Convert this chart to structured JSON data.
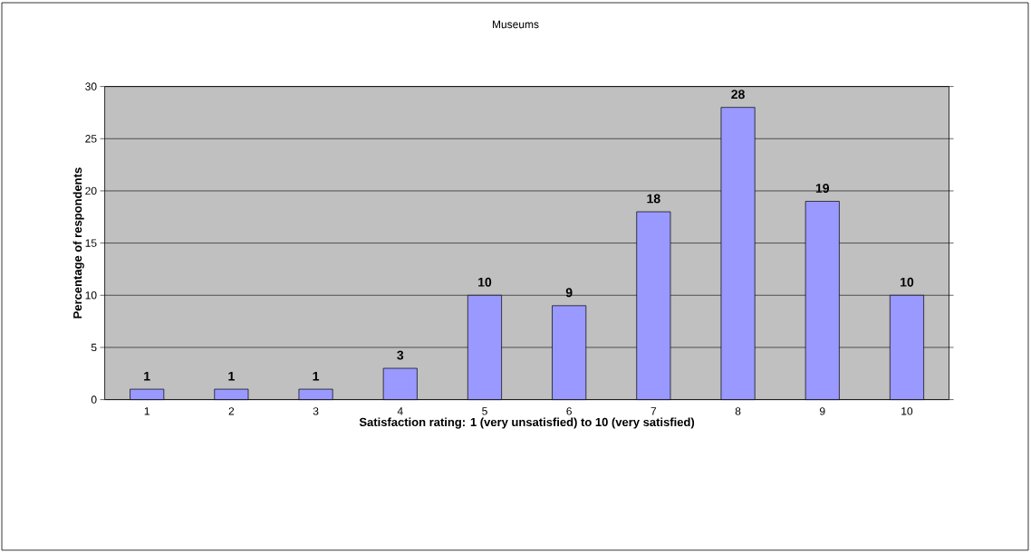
{
  "chart_data": {
    "type": "bar",
    "title": "Museums",
    "xlabel": "Satisfaction rating: 1 (very unsatisfied) to 10 (very satisfied)",
    "ylabel": "Percentage of respondents",
    "categories": [
      "1",
      "2",
      "3",
      "4",
      "5",
      "6",
      "7",
      "8",
      "9",
      "10"
    ],
    "values": [
      1,
      1,
      1,
      3,
      10,
      9,
      18,
      28,
      19,
      10
    ],
    "color": "#9999ff",
    "ylim": [
      0,
      30
    ],
    "yticks": [
      0,
      5,
      10,
      15,
      20,
      25,
      30
    ],
    "grid": "y",
    "data_labels": true
  }
}
